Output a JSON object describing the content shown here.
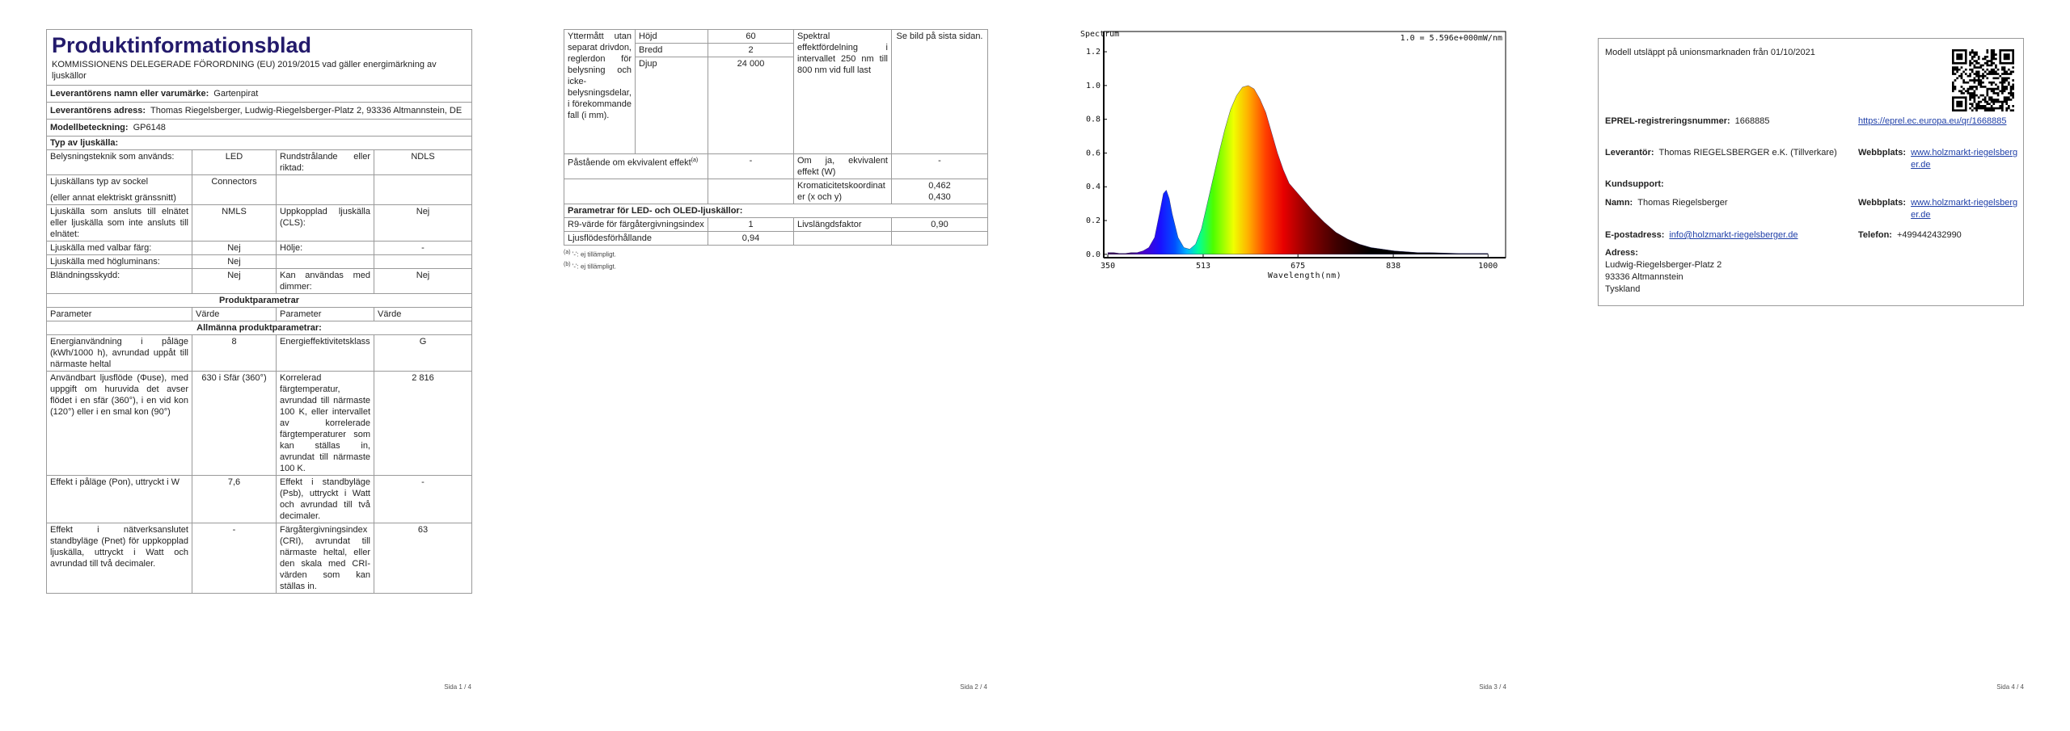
{
  "page1": {
    "title": "Produktinformationsblad",
    "subtitle": "KOMMISSIONENS DELEGERADE FÖRORDNING (EU) 2019/2015 vad gäller energimärkning av ljuskällor",
    "info": [
      {
        "label": "Leverantörens namn eller varumärke:",
        "value": "Gartenpirat"
      },
      {
        "label": "Leverantörens adress:",
        "value": "Thomas Riegelsberger, Ludwig-Riegelsberger-Platz 2, 93336 Altmannstein, DE"
      },
      {
        "label": "Modellbeteckning:",
        "value": "GP6148"
      }
    ],
    "type_heading": "Typ av ljuskälla:",
    "type_rows": [
      [
        "Belysningsteknik som används:",
        "LED",
        "Rundstrålande eller riktad:",
        "NDLS"
      ],
      [
        [
          "Ljuskällans typ av sockel",
          "(eller annat elektriskt gränssnitt)"
        ],
        "Connectors",
        null,
        null
      ],
      [
        "Ljuskälla som ansluts till elnätet eller ljuskälla som inte ansluts till elnätet:",
        "NMLS",
        "Uppkopplad ljuskälla (CLS):",
        "Nej"
      ],
      [
        "Ljuskälla med valbar färg:",
        "Nej",
        "Hölje:",
        "-"
      ],
      [
        "Ljuskälla med högluminans:",
        "Nej",
        null,
        null
      ],
      [
        "Bländningsskydd:",
        "Nej",
        "Kan användas med dimmer:",
        "Nej"
      ]
    ],
    "params_heading": "Produktparametrar",
    "params_header": [
      "Parameter",
      "Värde",
      "Parameter",
      "Värde"
    ],
    "general_heading": "Allmänna produktparametrar:",
    "params_rows": [
      [
        "Energianvändning i påläge (kWh/1000 h), avrundad uppåt till närmaste heltal",
        "8",
        "Energieffektivitetsklass",
        "G"
      ],
      [
        "Användbart ljusflöde (Φuse), med uppgift om huruvida det avser flödet i en sfär (360°), i en vid kon (120°) eller i en smal kon (90°)",
        "630 i Sfär (360°)",
        "Korrelerad färgtemperatur, avrundad till närmaste 100 K, eller intervallet av korrelerade färgtemperaturer som kan ställas in, avrundat till närmaste 100 K.",
        "2 816"
      ],
      [
        "Effekt i påläge (Pon), uttryckt i W",
        "7,6",
        "Effekt i standbyläge (Psb), uttryckt i Watt och avrundad till två decimaler.",
        "-"
      ],
      [
        "Effekt i nätverksanslutet standbyläge (Pnet) för uppkopplad ljuskälla, uttryckt i Watt och avrundad till två decimaler.",
        "-",
        "Färgåtergivningsindex (CRI), avrundat till närmaste heltal, eller den skala med CRI-värden som kan ställas in.",
        "63"
      ]
    ],
    "footer": "Sida 1 / 4"
  },
  "page2": {
    "dimensions": {
      "label": "Yttermått utan separat drivdon, reglerdon för belysning och icke-belysningsdelar, i förekommande fall (i mm).",
      "rows": [
        {
          "label": "Höjd",
          "value": "60"
        },
        {
          "label": "Bredd",
          "value": "2"
        },
        {
          "label": "Djup",
          "value": "24 000"
        }
      ]
    },
    "spectrum": {
      "label": "Spektral effektfördelning i intervallet 250 nm till 800 nm vid full last",
      "value": "Se bild på sista sidan."
    },
    "equivalent": {
      "label": "Påstående om ekvivalent effekt",
      "ref": "(a)",
      "value": "-"
    },
    "equivalent_power": {
      "label": "Om ja, ekvivalent effekt (W)",
      "value": "-"
    },
    "chromaticity": {
      "label": "Kromaticitetskoordinater (x och y)",
      "values": [
        "0,462",
        "0,430"
      ]
    },
    "led_heading": "Parametrar för LED- och OLED-ljuskällor:",
    "r9": {
      "label": "R9-värde för färgåtergivningsindex",
      "value": "1"
    },
    "survival": {
      "label": "Livslängdsfaktor",
      "value": "0,90"
    },
    "flux_ratio": {
      "label": "Ljusflödesförhållande",
      "value": "0,94"
    },
    "notes": [
      {
        "ref": "(a)",
        "text": "'-': ej tillämpligt."
      },
      {
        "ref": "(b)",
        "text": "'-': ej tillämpligt."
      }
    ],
    "footer": "Sida 2 / 4"
  },
  "chart_data": {
    "type": "area",
    "title": "Spectrum",
    "annotation": "1.0 = 5.596e+000mW/nm",
    "x_label": "Wavelength(nm)",
    "x": [
      350,
      360,
      370,
      380,
      390,
      400,
      410,
      420,
      430,
      440,
      445,
      450,
      455,
      460,
      470,
      480,
      490,
      500,
      510,
      520,
      530,
      540,
      550,
      560,
      570,
      580,
      590,
      600,
      610,
      620,
      630,
      640,
      650,
      660,
      670,
      680,
      690,
      700,
      720,
      740,
      760,
      780,
      800,
      820,
      840,
      860,
      880,
      900,
      950,
      1000
    ],
    "values": [
      0.01,
      0.01,
      0.005,
      0.005,
      0.01,
      0.01,
      0.02,
      0.04,
      0.1,
      0.27,
      0.36,
      0.38,
      0.33,
      0.24,
      0.1,
      0.04,
      0.03,
      0.06,
      0.15,
      0.3,
      0.45,
      0.6,
      0.74,
      0.86,
      0.94,
      0.99,
      1.0,
      0.98,
      0.92,
      0.84,
      0.72,
      0.6,
      0.5,
      0.42,
      0.38,
      0.34,
      0.3,
      0.26,
      0.19,
      0.13,
      0.09,
      0.06,
      0.04,
      0.03,
      0.02,
      0.015,
      0.01,
      0.01,
      0.005,
      0.005
    ],
    "xlim": [
      343,
      1030
    ],
    "xticks": [
      350,
      513,
      675,
      838,
      1000
    ],
    "ylim": [
      -0.02,
      1.32
    ],
    "yticks": [
      {
        "value": 0,
        "label": "0.0"
      },
      0.2,
      0.4,
      0.6,
      0.8,
      {
        "value": 1,
        "label": "1.0"
      },
      1.2
    ],
    "grid": false
  },
  "page3": {
    "footer": "Sida 3 / 4"
  },
  "page4": {
    "release": "Modell utsläppt på unionsmarknaden från 01/10/2021",
    "eprel": {
      "label": "EPREL-registreringsnummer:",
      "value": "1668885",
      "link": "https://eprel.ec.europa.eu/qr/1668885"
    },
    "supplier": {
      "label": "Leverantör:",
      "value": "Thomas RIEGELSBERGER e.K. (Tillverkare)"
    },
    "supplier_web": {
      "label": "Webbplats:",
      "value": "www.holzmarkt-riegelsberger.de"
    },
    "support_heading": "Kundsupport:",
    "name": {
      "label": "Namn:",
      "value": "Thomas Riegelsberger"
    },
    "support_web": {
      "label": "Webbplats:",
      "value": "www.holzmarkt-riegelsberger.de"
    },
    "email": {
      "label": "E-postadress:",
      "value": "info@holzmarkt-riegelsberger.de"
    },
    "phone": {
      "label": "Telefon:",
      "value": "+499442432990"
    },
    "address": {
      "label": "Adress:",
      "lines": [
        "Ludwig-Riegelsberger-Platz 2",
        "93336 Altmannstein",
        "Tyskland"
      ]
    },
    "footer": "Sida 4 / 4"
  }
}
